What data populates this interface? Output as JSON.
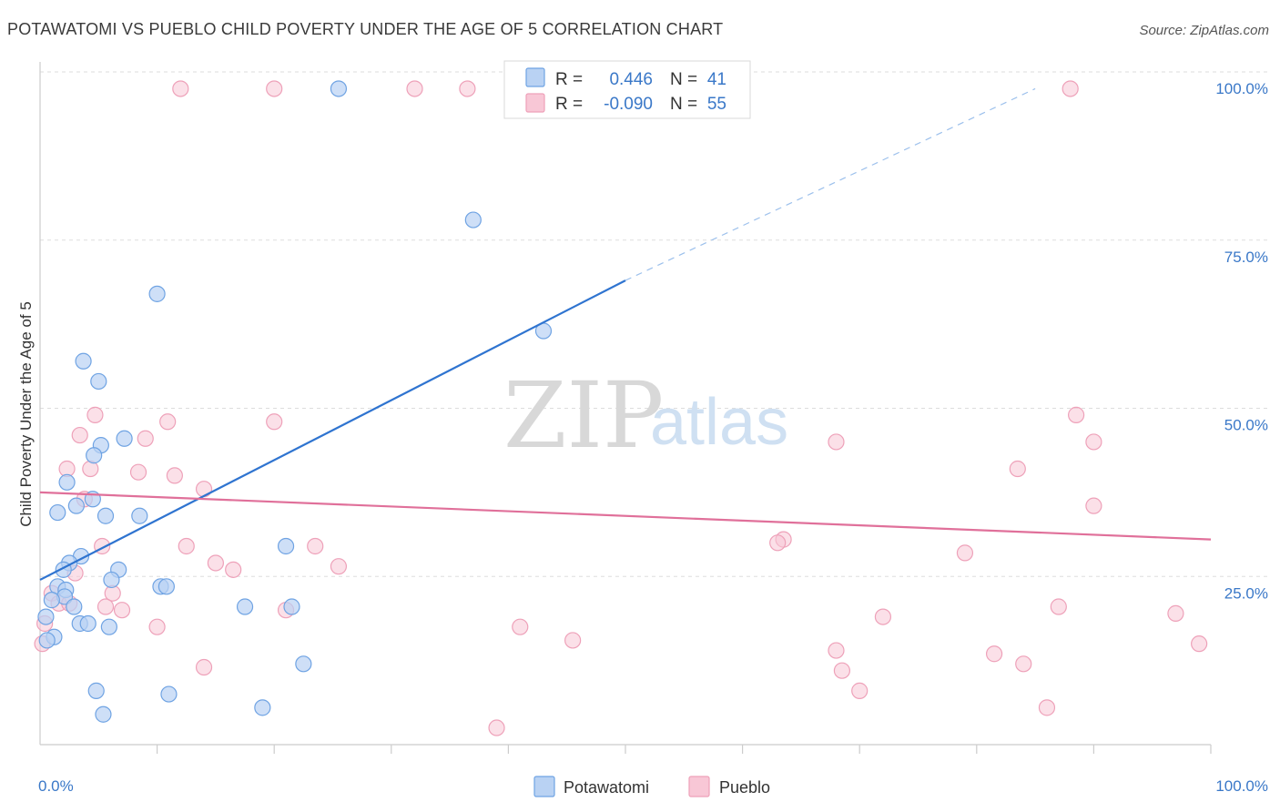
{
  "header": {
    "title": "POTAWATOMI VS PUEBLO CHILD POVERTY UNDER THE AGE OF 5 CORRELATION CHART",
    "source": "Source: ZipAtlas.com"
  },
  "watermark": {
    "zip": "ZIP",
    "atlas": "atlas"
  },
  "stats": {
    "r_label": "R =",
    "n_label": "N =",
    "rows": [
      {
        "series": "Potawatomi",
        "r": "0.446",
        "n": "41",
        "color": "#6fa3e3"
      },
      {
        "series": "Pueblo",
        "r": "-0.090",
        "n": "55",
        "color": "#f0a3bb"
      }
    ]
  },
  "colors": {
    "potawatomi_fill": "#b9d2f3",
    "potawatomi_stroke": "#6fa3e3",
    "potawatomi_line": "#2f74d0",
    "pueblo_fill": "#f8c7d6",
    "pueblo_stroke": "#eea1b9",
    "pueblo_line": "#e0709a",
    "axis_label": "#3a78c8",
    "grid": "#dddddd"
  },
  "chart_data": {
    "type": "scatter",
    "title": "POTAWATOMI VS PUEBLO CHILD POVERTY UNDER THE AGE OF 5 CORRELATION CHART",
    "xlabel": "",
    "ylabel": "Child Poverty Under the Age of 5",
    "xlim": [
      0,
      100
    ],
    "ylim": [
      0,
      100
    ],
    "x_tick_labels": [
      "0.0%",
      "100.0%"
    ],
    "y_ticks": [
      25,
      50,
      75,
      100
    ],
    "y_tick_labels": [
      "25.0%",
      "50.0%",
      "75.0%",
      "100.0%"
    ],
    "grid": "horizontal dashed",
    "legend": {
      "placement": "bottom-center",
      "entries": [
        "Potawatomi",
        "Pueblo"
      ]
    },
    "series": [
      {
        "name": "Potawatomi",
        "r": 0.446,
        "n": 41,
        "trend": {
          "x": [
            0,
            50
          ],
          "y": [
            24.5,
            69.0
          ],
          "dashed_to": {
            "x": 85,
            "y": 97.5
          }
        },
        "points": [
          {
            "x": 25.5,
            "y": 97.5
          },
          {
            "x": 37.0,
            "y": 78.0
          },
          {
            "x": 10.0,
            "y": 67.0
          },
          {
            "x": 43.0,
            "y": 61.5
          },
          {
            "x": 3.7,
            "y": 57.0
          },
          {
            "x": 5.0,
            "y": 54.0
          },
          {
            "x": 7.2,
            "y": 45.5
          },
          {
            "x": 5.2,
            "y": 44.5
          },
          {
            "x": 4.6,
            "y": 43.0
          },
          {
            "x": 2.3,
            "y": 39.0
          },
          {
            "x": 4.5,
            "y": 36.5
          },
          {
            "x": 3.1,
            "y": 35.5
          },
          {
            "x": 1.5,
            "y": 34.5
          },
          {
            "x": 5.6,
            "y": 34.0
          },
          {
            "x": 8.5,
            "y": 34.0
          },
          {
            "x": 21.0,
            "y": 29.5
          },
          {
            "x": 3.5,
            "y": 28.0
          },
          {
            "x": 2.5,
            "y": 27.0
          },
          {
            "x": 2.0,
            "y": 26.0
          },
          {
            "x": 6.7,
            "y": 26.0
          },
          {
            "x": 6.1,
            "y": 24.5
          },
          {
            "x": 1.5,
            "y": 23.5
          },
          {
            "x": 2.2,
            "y": 23.0
          },
          {
            "x": 10.3,
            "y": 23.5
          },
          {
            "x": 10.8,
            "y": 23.5
          },
          {
            "x": 2.1,
            "y": 22.0
          },
          {
            "x": 1.0,
            "y": 21.5
          },
          {
            "x": 2.9,
            "y": 20.5
          },
          {
            "x": 17.5,
            "y": 20.5
          },
          {
            "x": 21.5,
            "y": 20.5
          },
          {
            "x": 0.5,
            "y": 19.0
          },
          {
            "x": 3.4,
            "y": 18.0
          },
          {
            "x": 4.1,
            "y": 18.0
          },
          {
            "x": 5.9,
            "y": 17.5
          },
          {
            "x": 1.2,
            "y": 16.0
          },
          {
            "x": 0.6,
            "y": 15.5
          },
          {
            "x": 22.5,
            "y": 12.0
          },
          {
            "x": 4.8,
            "y": 8.0
          },
          {
            "x": 11.0,
            "y": 7.5
          },
          {
            "x": 19.0,
            "y": 5.5
          },
          {
            "x": 5.4,
            "y": 4.5
          }
        ]
      },
      {
        "name": "Pueblo",
        "r": -0.09,
        "n": 55,
        "trend": {
          "x": [
            0,
            100
          ],
          "y": [
            37.5,
            30.5
          ]
        },
        "points": [
          {
            "x": 12.0,
            "y": 97.5
          },
          {
            "x": 20.0,
            "y": 97.5
          },
          {
            "x": 32.0,
            "y": 97.5
          },
          {
            "x": 36.5,
            "y": 97.5
          },
          {
            "x": 88.0,
            "y": 97.5
          },
          {
            "x": 4.7,
            "y": 49.0
          },
          {
            "x": 88.5,
            "y": 49.0
          },
          {
            "x": 10.9,
            "y": 48.0
          },
          {
            "x": 20.0,
            "y": 48.0
          },
          {
            "x": 3.4,
            "y": 46.0
          },
          {
            "x": 9.0,
            "y": 45.5
          },
          {
            "x": 68.0,
            "y": 45.0
          },
          {
            "x": 90.0,
            "y": 45.0
          },
          {
            "x": 2.3,
            "y": 41.0
          },
          {
            "x": 4.3,
            "y": 41.0
          },
          {
            "x": 83.5,
            "y": 41.0
          },
          {
            "x": 8.4,
            "y": 40.5
          },
          {
            "x": 11.5,
            "y": 40.0
          },
          {
            "x": 14.0,
            "y": 38.0
          },
          {
            "x": 3.8,
            "y": 36.5
          },
          {
            "x": 90.0,
            "y": 35.5
          },
          {
            "x": 63.5,
            "y": 30.5
          },
          {
            "x": 63.0,
            "y": 30.0
          },
          {
            "x": 5.3,
            "y": 29.5
          },
          {
            "x": 12.5,
            "y": 29.5
          },
          {
            "x": 23.5,
            "y": 29.5
          },
          {
            "x": 79.0,
            "y": 28.5
          },
          {
            "x": 15.0,
            "y": 27.0
          },
          {
            "x": 25.5,
            "y": 26.5
          },
          {
            "x": 16.5,
            "y": 26.0
          },
          {
            "x": 3.0,
            "y": 25.5
          },
          {
            "x": 1.0,
            "y": 22.5
          },
          {
            "x": 6.2,
            "y": 22.5
          },
          {
            "x": 1.6,
            "y": 21.0
          },
          {
            "x": 2.5,
            "y": 21.0
          },
          {
            "x": 5.6,
            "y": 20.5
          },
          {
            "x": 7.0,
            "y": 20.0
          },
          {
            "x": 21.0,
            "y": 20.0
          },
          {
            "x": 87.0,
            "y": 20.5
          },
          {
            "x": 97.0,
            "y": 19.5
          },
          {
            "x": 72.0,
            "y": 19.0
          },
          {
            "x": 0.4,
            "y": 18.0
          },
          {
            "x": 10.0,
            "y": 17.5
          },
          {
            "x": 41.0,
            "y": 17.5
          },
          {
            "x": 0.2,
            "y": 15.0
          },
          {
            "x": 45.5,
            "y": 15.5
          },
          {
            "x": 99.0,
            "y": 15.0
          },
          {
            "x": 68.0,
            "y": 14.0
          },
          {
            "x": 81.5,
            "y": 13.5
          },
          {
            "x": 84.0,
            "y": 12.0
          },
          {
            "x": 14.0,
            "y": 11.5
          },
          {
            "x": 68.5,
            "y": 11.0
          },
          {
            "x": 70.0,
            "y": 8.0
          },
          {
            "x": 86.0,
            "y": 5.5
          },
          {
            "x": 39.0,
            "y": 2.5
          }
        ]
      }
    ]
  }
}
